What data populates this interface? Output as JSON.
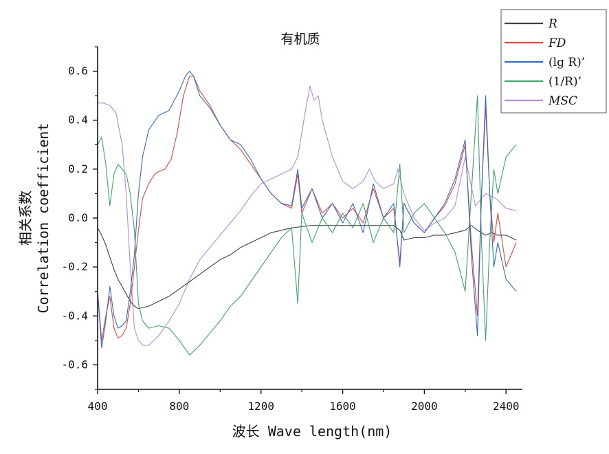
{
  "chart_data": {
    "type": "line",
    "title": "有机质",
    "xlabel": "波长 Wave length(nm)",
    "ylabel_cn": "相关系数",
    "ylabel_en": "Correlation coefficient",
    "xlim": [
      400,
      2480
    ],
    "ylim": [
      -0.7,
      0.7
    ],
    "xticks": [
      400,
      800,
      1200,
      1600,
      2000,
      2400
    ],
    "yticks": [
      -0.6,
      -0.4,
      -0.2,
      0.0,
      0.2,
      0.4,
      0.6
    ],
    "ytick_labels": [
      "-0.6",
      "-0.4",
      "-0.2",
      "0.0",
      "0.2",
      "0.4",
      "0.6"
    ],
    "grid": false,
    "legend_position": "top-right",
    "series": [
      {
        "name": "R",
        "italic": true,
        "color": "#404040",
        "x": [
          400,
          420,
          440,
          460,
          480,
          500,
          520,
          540,
          560,
          580,
          600,
          650,
          700,
          750,
          800,
          850,
          900,
          950,
          1000,
          1050,
          1100,
          1150,
          1200,
          1250,
          1300,
          1350,
          1400,
          1450,
          1500,
          1550,
          1600,
          1650,
          1700,
          1750,
          1800,
          1850,
          1880,
          1900,
          1950,
          2000,
          2050,
          2100,
          2150,
          2200,
          2230,
          2260,
          2300,
          2330,
          2360,
          2400,
          2450
        ],
        "values": [
          -0.04,
          -0.07,
          -0.11,
          -0.16,
          -0.21,
          -0.25,
          -0.28,
          -0.31,
          -0.34,
          -0.36,
          -0.37,
          -0.36,
          -0.34,
          -0.32,
          -0.29,
          -0.26,
          -0.23,
          -0.2,
          -0.17,
          -0.15,
          -0.12,
          -0.1,
          -0.08,
          -0.06,
          -0.05,
          -0.04,
          -0.035,
          -0.03,
          -0.03,
          -0.03,
          -0.03,
          -0.03,
          -0.03,
          -0.03,
          -0.03,
          -0.03,
          -0.05,
          -0.09,
          -0.08,
          -0.08,
          -0.07,
          -0.07,
          -0.06,
          -0.05,
          -0.03,
          -0.05,
          -0.07,
          -0.06,
          -0.07,
          -0.07,
          -0.09
        ]
      },
      {
        "name": "FD",
        "italic": true,
        "color": "#e0463c",
        "x": [
          400,
          420,
          440,
          460,
          480,
          500,
          520,
          540,
          560,
          580,
          600,
          620,
          650,
          680,
          700,
          730,
          760,
          790,
          820,
          850,
          870,
          900,
          950,
          1000,
          1050,
          1100,
          1150,
          1200,
          1250,
          1300,
          1350,
          1380,
          1400,
          1450,
          1500,
          1550,
          1600,
          1650,
          1700,
          1750,
          1800,
          1850,
          1880,
          1900,
          1950,
          2000,
          2050,
          2100,
          2150,
          2200,
          2230,
          2260,
          2280,
          2300,
          2320,
          2340,
          2360,
          2400,
          2450
        ],
        "values": [
          -0.3,
          -0.5,
          -0.4,
          -0.32,
          -0.45,
          -0.49,
          -0.48,
          -0.45,
          -0.35,
          -0.2,
          -0.05,
          0.08,
          0.14,
          0.18,
          0.19,
          0.2,
          0.24,
          0.35,
          0.5,
          0.58,
          0.58,
          0.52,
          0.46,
          0.38,
          0.32,
          0.28,
          0.22,
          0.16,
          0.1,
          0.06,
          0.04,
          0.18,
          0.02,
          0.12,
          0.02,
          0.06,
          0.0,
          0.04,
          -0.02,
          0.12,
          0.0,
          0.04,
          -0.18,
          0.06,
          -0.02,
          -0.06,
          0.0,
          0.05,
          0.14,
          0.3,
          -0.1,
          -0.4,
          0.1,
          0.45,
          0.1,
          -0.1,
          0.02,
          -0.2,
          -0.1
        ]
      },
      {
        "name": "(lg R)’",
        "italic": false,
        "color": "#2f6bd0",
        "x": [
          400,
          420,
          440,
          460,
          480,
          500,
          520,
          540,
          560,
          580,
          600,
          620,
          650,
          700,
          750,
          800,
          830,
          850,
          870,
          900,
          950,
          1000,
          1050,
          1100,
          1150,
          1200,
          1250,
          1300,
          1350,
          1380,
          1400,
          1450,
          1500,
          1550,
          1600,
          1650,
          1700,
          1750,
          1800,
          1850,
          1880,
          1900,
          1950,
          2000,
          2050,
          2100,
          2150,
          2200,
          2230,
          2260,
          2280,
          2300,
          2320,
          2340,
          2360,
          2400,
          2450
        ],
        "values": [
          -0.3,
          -0.53,
          -0.42,
          -0.28,
          -0.4,
          -0.45,
          -0.44,
          -0.42,
          -0.3,
          -0.15,
          0.1,
          0.25,
          0.36,
          0.42,
          0.44,
          0.52,
          0.58,
          0.6,
          0.58,
          0.5,
          0.45,
          0.38,
          0.32,
          0.3,
          0.24,
          0.16,
          0.1,
          0.06,
          0.05,
          0.2,
          0.04,
          0.12,
          0.0,
          0.06,
          -0.02,
          0.06,
          -0.06,
          0.14,
          0.0,
          0.06,
          -0.2,
          0.06,
          -0.02,
          -0.06,
          0.0,
          0.06,
          0.16,
          0.32,
          -0.15,
          -0.48,
          0.1,
          0.5,
          0.1,
          -0.2,
          -0.1,
          -0.25,
          -0.3
        ]
      },
      {
        "name": "(1/R)’",
        "italic": false,
        "color": "#3aa765",
        "x": [
          400,
          420,
          440,
          460,
          480,
          500,
          520,
          540,
          560,
          580,
          600,
          620,
          650,
          700,
          750,
          800,
          850,
          900,
          950,
          1000,
          1050,
          1100,
          1150,
          1200,
          1250,
          1300,
          1350,
          1380,
          1400,
          1450,
          1500,
          1550,
          1600,
          1650,
          1700,
          1750,
          1800,
          1850,
          1880,
          1900,
          1950,
          2000,
          2050,
          2100,
          2150,
          2200,
          2230,
          2260,
          2280,
          2300,
          2320,
          2340,
          2360,
          2400,
          2450
        ],
        "values": [
          0.3,
          0.33,
          0.22,
          0.05,
          0.18,
          0.22,
          0.2,
          0.18,
          0.1,
          -0.05,
          -0.35,
          -0.42,
          -0.45,
          -0.44,
          -0.45,
          -0.5,
          -0.56,
          -0.52,
          -0.47,
          -0.42,
          -0.36,
          -0.32,
          -0.26,
          -0.2,
          -0.14,
          -0.08,
          -0.04,
          -0.35,
          0.02,
          -0.1,
          0.0,
          -0.06,
          0.02,
          -0.04,
          0.06,
          -0.1,
          0.0,
          -0.06,
          0.22,
          -0.06,
          0.02,
          0.06,
          0.0,
          -0.06,
          -0.14,
          -0.3,
          0.1,
          0.5,
          -0.1,
          -0.5,
          -0.1,
          0.2,
          0.1,
          0.25,
          0.3
        ]
      },
      {
        "name": "MSC",
        "italic": true,
        "color": "#b48ae0",
        "x": [
          400,
          430,
          460,
          490,
          520,
          540,
          560,
          580,
          600,
          620,
          650,
          700,
          750,
          800,
          850,
          900,
          950,
          1000,
          1050,
          1100,
          1150,
          1200,
          1250,
          1300,
          1350,
          1380,
          1400,
          1420,
          1440,
          1460,
          1480,
          1500,
          1550,
          1600,
          1650,
          1700,
          1730,
          1760,
          1800,
          1850,
          1870,
          1900,
          1950,
          2000,
          2050,
          2100,
          2150,
          2200,
          2250,
          2300,
          2350,
          2400,
          2450
        ],
        "values": [
          0.47,
          0.47,
          0.46,
          0.43,
          0.3,
          0.1,
          -0.2,
          -0.45,
          -0.5,
          -0.52,
          -0.52,
          -0.48,
          -0.42,
          -0.35,
          -0.25,
          -0.17,
          -0.12,
          -0.07,
          -0.02,
          0.03,
          0.09,
          0.14,
          0.16,
          0.18,
          0.2,
          0.25,
          0.35,
          0.45,
          0.54,
          0.48,
          0.5,
          0.4,
          0.25,
          0.15,
          0.12,
          0.15,
          0.2,
          0.15,
          0.12,
          0.14,
          0.2,
          0.1,
          0.0,
          -0.05,
          -0.02,
          0.0,
          0.05,
          0.25,
          0.05,
          0.1,
          0.08,
          0.04,
          0.03
        ]
      }
    ]
  }
}
